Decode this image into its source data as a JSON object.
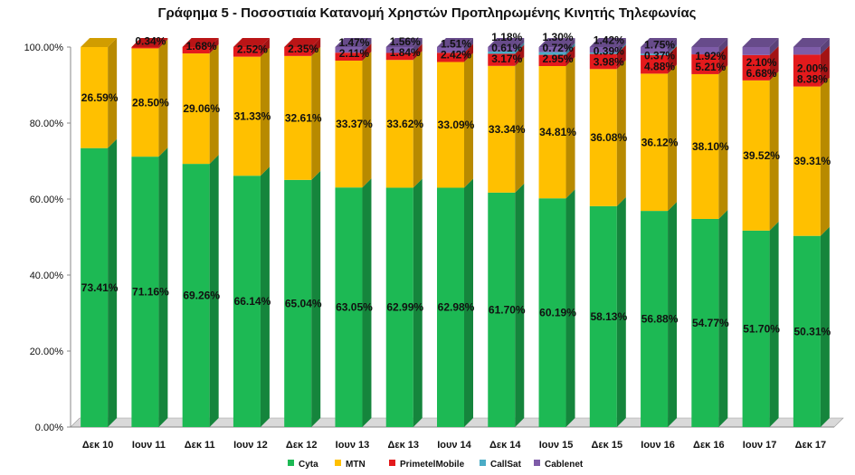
{
  "chart_data": {
    "type": "bar",
    "stacked": true,
    "percent_stacked": true,
    "title": "Γράφημα 5 - Ποσοστιαία Κατανομή Χρηστών Προπληρωμένης Κινητής Τηλεφωνίας",
    "categories": [
      "Δεκ 10",
      "Ιουν 11",
      "Δεκ 11",
      "Ιουν 12",
      "Δεκ 12",
      "Ιουν 13",
      "Δεκ 13",
      "Ιουν 14",
      "Δεκ 14",
      "Ιουν 15",
      "Δεκ 15",
      "Ιουν 16",
      "Δεκ 16",
      "Ιουν 17",
      "Δεκ 17"
    ],
    "ylim": [
      0,
      100
    ],
    "yticks": [
      "0.00%",
      "20.00%",
      "40.00%",
      "60.00%",
      "80.00%",
      "100.00%"
    ],
    "grid": false,
    "legend": "bottom",
    "series": [
      {
        "name": "Cyta",
        "color": "#1DB954",
        "values": [
          73.41,
          71.16,
          69.26,
          66.14,
          65.04,
          63.05,
          62.99,
          62.98,
          61.7,
          60.19,
          58.13,
          56.88,
          54.77,
          51.7,
          50.31
        ],
        "labels": [
          "73.41%",
          "71.16%",
          "69.26%",
          "66.14%",
          "65.04%",
          "63.05%",
          "62.99%",
          "62.98%",
          "61.70%",
          "60.19%",
          "58.13%",
          "56.88%",
          "54.77%",
          "51.70%",
          "50.31%"
        ]
      },
      {
        "name": "MTN",
        "color": "#FFC000",
        "values": [
          26.59,
          28.5,
          29.06,
          31.33,
          32.61,
          33.37,
          33.62,
          33.09,
          33.34,
          34.81,
          36.08,
          36.12,
          38.1,
          39.52,
          39.31
        ],
        "labels": [
          "26.59%",
          "28.50%",
          "29.06%",
          "31.33%",
          "32.61%",
          "33.37%",
          "33.62%",
          "33.09%",
          "33.34%",
          "34.81%",
          "36.08%",
          "36.12%",
          "38.10%",
          "39.52%",
          "39.31%"
        ]
      },
      {
        "name": "PrimetelMobile",
        "color": "#E31A1C",
        "values": [
          0,
          0.34,
          1.68,
          2.52,
          2.35,
          2.11,
          1.84,
          2.42,
          3.17,
          2.95,
          3.98,
          4.88,
          5.21,
          6.68,
          8.38
        ],
        "labels": [
          "",
          "0.34%",
          "1.68%",
          "2.52%",
          "2.35%",
          "2.11%",
          "1.84%",
          "2.42%",
          "3.17%",
          "2.95%",
          "3.98%",
          "4.88%",
          "5.21%",
          "6.68%",
          "8.38%"
        ]
      },
      {
        "name": "CallSat",
        "color": "#4BACC6",
        "values": [
          0,
          0,
          0,
          0,
          0,
          0,
          0,
          0,
          0.61,
          0.72,
          0.39,
          0.37,
          0,
          0,
          0
        ],
        "labels": [
          "",
          "",
          "",
          "",
          "",
          "",
          "",
          "",
          "0.61%",
          "0.72%",
          "0.39%",
          "0.37%",
          "",
          "",
          ""
        ]
      },
      {
        "name": "Cablenet",
        "color": "#7E5CA8",
        "values": [
          0,
          0,
          0,
          0,
          0,
          1.47,
          1.56,
          1.51,
          1.18,
          1.3,
          1.42,
          1.75,
          1.92,
          2.1,
          2.0
        ],
        "labels": [
          "",
          "",
          "",
          "",
          "",
          "1.47%",
          "1.56%",
          "1.51%",
          "1.18%",
          "1.30%",
          "1.42%",
          "1.75%",
          "1.92%",
          "2.10%",
          "2.00%"
        ]
      }
    ]
  }
}
